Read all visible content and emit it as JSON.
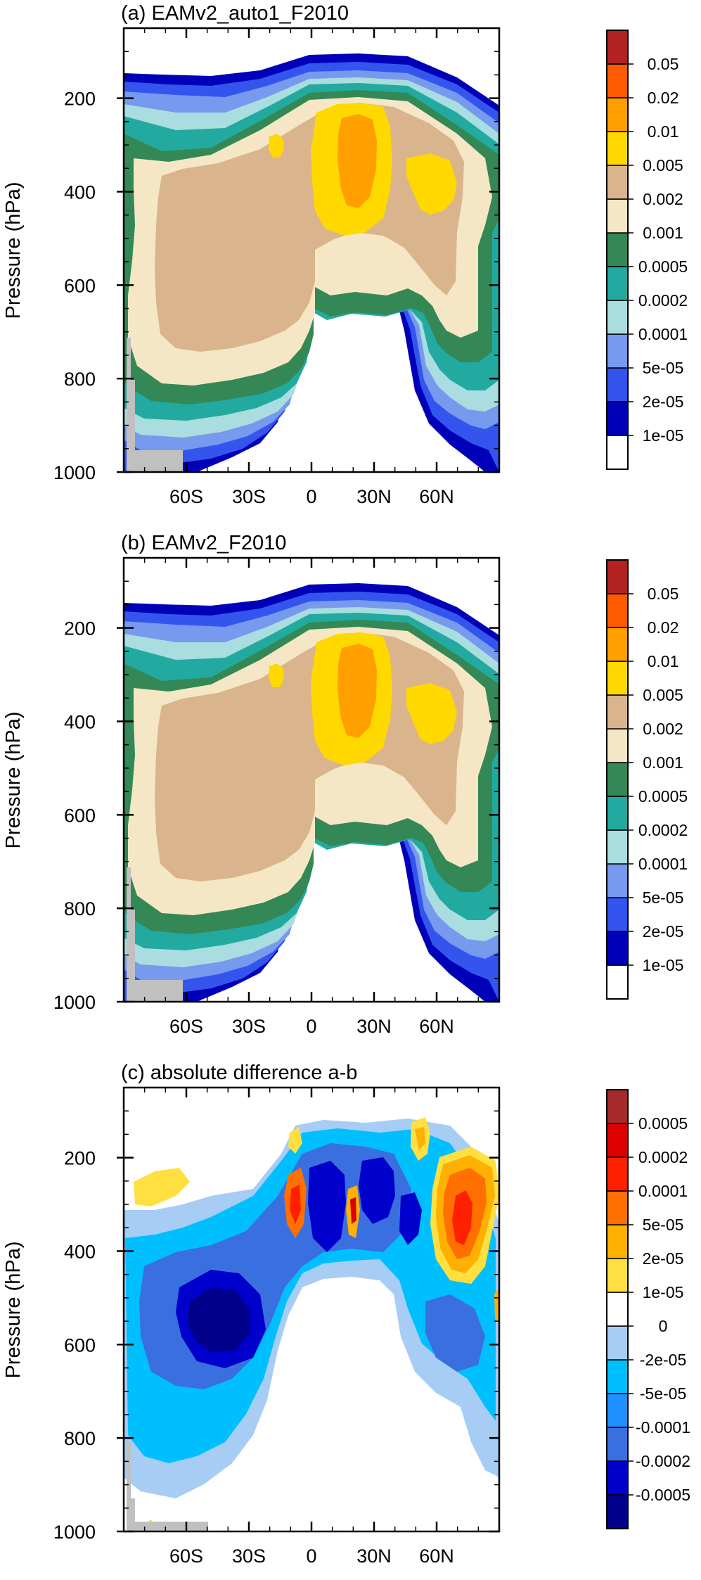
{
  "figure": {
    "panels": [
      {
        "title": "(a) EAMv2_auto1_F2010",
        "ylabel": "Pressure (hPa)",
        "colorbar_labels": [
          "0.05",
          "0.02",
          "0.01",
          "0.005",
          "0.002",
          "0.001",
          "0.0005",
          "0.0002",
          "0.0001",
          "5e-05",
          "2e-05",
          "1e-05"
        ],
        "colors": [
          "#ffffff",
          "#0000b8",
          "#3355ee",
          "#7799ee",
          "#aadde0",
          "#22aaa0",
          "#338855",
          "#f5e7c5",
          "#d9b48c",
          "#ffd800",
          "#ffa000",
          "#ff5a00",
          "#b22222"
        ]
      },
      {
        "title": "(b) EAMv2_F2010",
        "ylabel": "Pressure (hPa)",
        "colorbar_labels": [
          "0.05",
          "0.02",
          "0.01",
          "0.005",
          "0.002",
          "0.001",
          "0.0005",
          "0.0002",
          "0.0001",
          "5e-05",
          "2e-05",
          "1e-05"
        ],
        "colors": [
          "#ffffff",
          "#0000b8",
          "#3355ee",
          "#7799ee",
          "#aadde0",
          "#22aaa0",
          "#338855",
          "#f5e7c5",
          "#d9b48c",
          "#ffd800",
          "#ffa000",
          "#ff5a00",
          "#b22222"
        ]
      },
      {
        "title": "(c) absolute difference a-b",
        "ylabel": "Pressure (hPa)",
        "colorbar_labels": [
          "0.0005",
          "0.0002",
          "0.0001",
          "5e-05",
          "2e-05",
          "1e-05",
          "0",
          "-2e-05",
          "-5e-05",
          "-0.0001",
          "-0.0002",
          "-0.0005"
        ],
        "colors": [
          "#00008b",
          "#0000cd",
          "#3a6fe0",
          "#1e90ff",
          "#00bfff",
          "#a7cdf5",
          "#ffffff",
          "#ffe040",
          "#ffb000",
          "#ff7000",
          "#ff2000",
          "#dd0000",
          "#a52a2a"
        ]
      }
    ],
    "missing_color": "#c0c0c0"
  },
  "chart_data": [
    {
      "type": "heatmap",
      "title": "(a) EAMv2_auto1_F2010",
      "xlabel": "",
      "ylabel": "Pressure (hPa)",
      "x_ticks": [
        "60S",
        "30S",
        "0",
        "30N",
        "60N"
      ],
      "x_tick_values": [
        -60,
        -30,
        0,
        30,
        60
      ],
      "y_ticks": [
        "200",
        "400",
        "600",
        "800",
        "1000"
      ],
      "y_tick_values": [
        200,
        400,
        600,
        800,
        1000
      ],
      "xlim": [
        -90,
        90
      ],
      "ylim": [
        1000,
        50
      ],
      "colorbar_levels": [
        "0.05",
        "0.02",
        "0.01",
        "0.005",
        "0.002",
        "0.001",
        "0.0005",
        "0.0002",
        "0.0001",
        "5e-05",
        "2e-05",
        "1e-05"
      ],
      "grid": false
    },
    {
      "type": "heatmap",
      "title": "(b) EAMv2_F2010",
      "xlabel": "",
      "ylabel": "Pressure (hPa)",
      "x_ticks": [
        "60S",
        "30S",
        "0",
        "30N",
        "60N"
      ],
      "x_tick_values": [
        -60,
        -30,
        0,
        30,
        60
      ],
      "y_ticks": [
        "200",
        "400",
        "600",
        "800",
        "1000"
      ],
      "y_tick_values": [
        200,
        400,
        600,
        800,
        1000
      ],
      "xlim": [
        -90,
        90
      ],
      "ylim": [
        1000,
        50
      ],
      "colorbar_levels": [
        "0.05",
        "0.02",
        "0.01",
        "0.005",
        "0.002",
        "0.001",
        "0.0005",
        "0.0002",
        "0.0001",
        "5e-05",
        "2e-05",
        "1e-05"
      ],
      "grid": false
    },
    {
      "type": "heatmap",
      "title": "(c) absolute difference a-b",
      "xlabel": "",
      "ylabel": "Pressure (hPa)",
      "x_ticks": [
        "60S",
        "30S",
        "0",
        "30N",
        "60N"
      ],
      "x_tick_values": [
        -60,
        -30,
        0,
        30,
        60
      ],
      "y_ticks": [
        "200",
        "400",
        "600",
        "800",
        "1000"
      ],
      "y_tick_values": [
        200,
        400,
        600,
        800,
        1000
      ],
      "xlim": [
        -90,
        90
      ],
      "ylim": [
        1000,
        50
      ],
      "colorbar_levels": [
        "0.0005",
        "0.0002",
        "0.0001",
        "5e-05",
        "2e-05",
        "1e-05",
        "0",
        "-2e-05",
        "-5e-05",
        "-0.0001",
        "-0.0002",
        "-0.0005"
      ],
      "grid": false
    }
  ]
}
